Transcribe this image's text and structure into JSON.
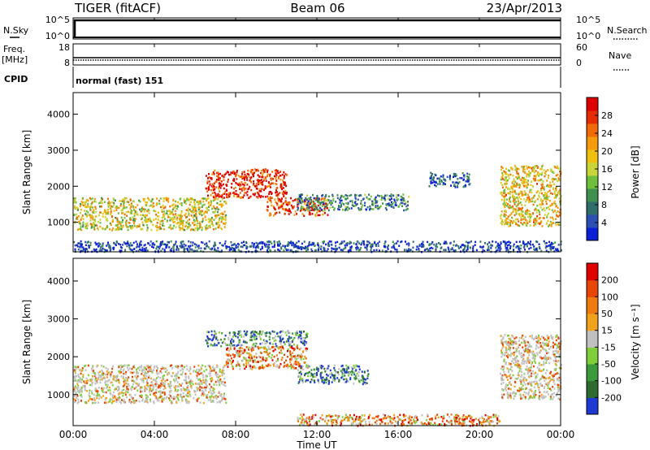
{
  "header": {
    "title": "TIGER (fitACF)",
    "beam": "Beam 06",
    "date": "23/Apr/2013"
  },
  "panels": {
    "nsky": {
      "label": "N.Sky",
      "ticks_left": [
        "10^5",
        "10^0"
      ],
      "ticks_right": [
        "10^5",
        "10^0"
      ],
      "right_label": "N.Search"
    },
    "freq": {
      "label_line1": "Freq.",
      "label_line2": "[MHz]",
      "ticks_left": [
        "18",
        "8"
      ],
      "ticks_right": [
        "60",
        "0"
      ],
      "right_label": "Nave"
    },
    "cpid": {
      "label": "CPID",
      "value": "normal (fast) 151"
    }
  },
  "chart_data": [
    {
      "type": "heatmap",
      "name": "power",
      "ylabel": "Slant Range [km]",
      "xlabel": "Time UT",
      "x_ticks": [
        "00:00",
        "04:00",
        "08:00",
        "12:00",
        "16:00",
        "20:00",
        "00:00"
      ],
      "xlim_hours": [
        0,
        24
      ],
      "y_ticks": [
        1000,
        2000,
        3000,
        4000
      ],
      "ylim": [
        180,
        4600
      ],
      "colorbar": {
        "label": "Power [dB]",
        "ticks": [
          "4",
          "8",
          "12",
          "16",
          "20",
          "24",
          "28"
        ],
        "colors": [
          "#0a1fd6",
          "#2d4fb4",
          "#2f6e6a",
          "#3f8f4f",
          "#6fbf3c",
          "#c8d53a",
          "#f0c010",
          "#f59a0c",
          "#f06a08",
          "#e52c05",
          "#dc0000"
        ]
      },
      "features": [
        {
          "t": [
            0,
            7.5
          ],
          "r": [
            800,
            1700
          ],
          "level": 0.55
        },
        {
          "t": [
            6.5,
            10.5
          ],
          "r": [
            1700,
            2500
          ],
          "level": 0.9
        },
        {
          "t": [
            9.5,
            12.5
          ],
          "r": [
            1200,
            1700
          ],
          "level": 0.85
        },
        {
          "t": [
            11,
            16.5
          ],
          "r": [
            1350,
            1800
          ],
          "level": 0.25
        },
        {
          "t": [
            17.5,
            19.5
          ],
          "r": [
            2000,
            2400
          ],
          "level": 0.15
        },
        {
          "t": [
            21,
            24
          ],
          "r": [
            900,
            2600
          ],
          "level": 0.6
        },
        {
          "t": [
            0,
            24
          ],
          "r": [
            200,
            500
          ],
          "level": 0.1
        }
      ]
    },
    {
      "type": "heatmap",
      "name": "velocity",
      "ylabel": "Slant Range [km]",
      "xlabel": "Time UT",
      "x_ticks": [
        "00:00",
        "04:00",
        "08:00",
        "12:00",
        "16:00",
        "20:00",
        "00:00"
      ],
      "xlim_hours": [
        0,
        24
      ],
      "y_ticks": [
        1000,
        2000,
        3000,
        4000
      ],
      "ylim": [
        180,
        4600
      ],
      "colorbar": {
        "label": "Velocity [m s⁻¹]",
        "ticks": [
          "200",
          "100",
          "50",
          "15",
          "-15",
          "-50",
          "-100",
          "-200"
        ],
        "colors": [
          "#1e3ad2",
          "#2f6a2f",
          "#3c9a3c",
          "#7fce3a",
          "#c0c0c0",
          "#f1a21c",
          "#ee7a10",
          "#e84606",
          "#e00000"
        ]
      },
      "features": [
        {
          "t": [
            0,
            7.5
          ],
          "r": [
            800,
            1800
          ],
          "v": "gray"
        },
        {
          "t": [
            6.5,
            11.5
          ],
          "r": [
            2300,
            2700
          ],
          "v": "blue"
        },
        {
          "t": [
            7.5,
            11.5
          ],
          "r": [
            1700,
            2300
          ],
          "v": "orange"
        },
        {
          "t": [
            11,
            14.5
          ],
          "r": [
            1300,
            1800
          ],
          "v": "blue"
        },
        {
          "t": [
            21,
            24
          ],
          "r": [
            900,
            2600
          ],
          "v": "gray"
        },
        {
          "t": [
            11,
            21
          ],
          "r": [
            200,
            500
          ],
          "v": "orange"
        }
      ]
    }
  ]
}
